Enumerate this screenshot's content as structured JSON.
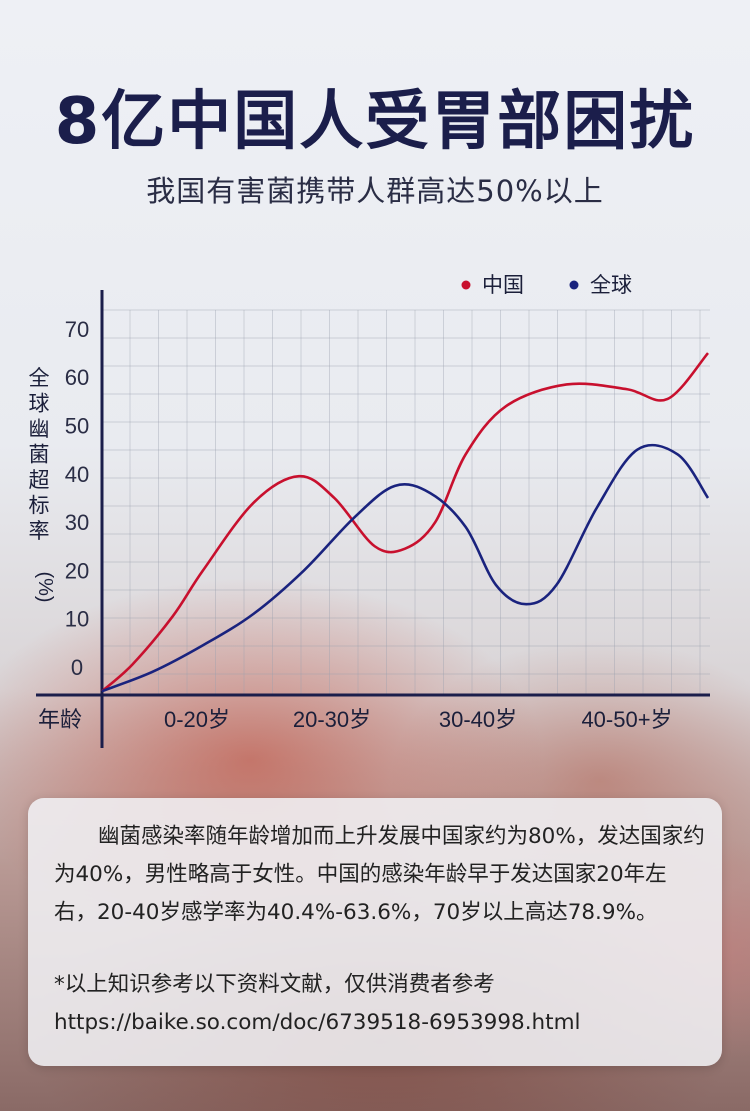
{
  "header": {
    "title": "8亿中国人受胃部困扰",
    "subtitle": "我国有害菌携带人群高达50%以上"
  },
  "chart_data": {
    "type": "line",
    "ylabel": "全球幽菌超标率（%）",
    "xlabel": "年龄",
    "ylim": [
      0,
      70
    ],
    "yticks": [
      0,
      10,
      20,
      30,
      40,
      50,
      60,
      70
    ],
    "categories": [
      "0-20岁",
      "20-30岁",
      "30-40岁",
      "40-50+岁"
    ],
    "grid": true,
    "legend_position": "top-right",
    "series": [
      {
        "name": "中国",
        "color": "#c8102e",
        "points": [
          [
            0,
            -5
          ],
          [
            0.3,
            0.5
          ],
          [
            0.7,
            10.5
          ],
          [
            1.0,
            20
          ],
          [
            1.5,
            34
          ],
          [
            1.95,
            39.5
          ],
          [
            2.3,
            35
          ],
          [
            2.7,
            25
          ],
          [
            3.0,
            24.5
          ],
          [
            3.3,
            30
          ],
          [
            3.6,
            44
          ],
          [
            4.0,
            54
          ],
          [
            4.6,
            58.5
          ],
          [
            5.2,
            57.5
          ],
          [
            5.6,
            55.5
          ],
          [
            6.0,
            65
          ]
        ]
      },
      {
        "name": "全球",
        "color": "#1a237e",
        "points": [
          [
            0,
            -5
          ],
          [
            0.5,
            -1
          ],
          [
            1.0,
            4.5
          ],
          [
            1.5,
            11
          ],
          [
            2.0,
            20
          ],
          [
            2.5,
            31
          ],
          [
            2.9,
            37.5
          ],
          [
            3.25,
            36
          ],
          [
            3.6,
            29
          ],
          [
            3.9,
            17
          ],
          [
            4.2,
            13
          ],
          [
            4.5,
            17
          ],
          [
            4.9,
            33
          ],
          [
            5.3,
            45
          ],
          [
            5.7,
            44
          ],
          [
            6.0,
            35
          ]
        ]
      }
    ]
  },
  "info": {
    "paragraph": "幽菌感染率随年龄增加而上升发展中国家约为80%，发达国家约为40%，男性略高于女性。中国的感染年龄早于发达国家20年左右，20-40岁感学率为40.4%-63.6%，70岁以上高达78.9%。",
    "note": "*以上知识参考以下资料文献，仅供消费者参考",
    "url": "https://baike.so.com/doc/6739518-6953998.html"
  }
}
